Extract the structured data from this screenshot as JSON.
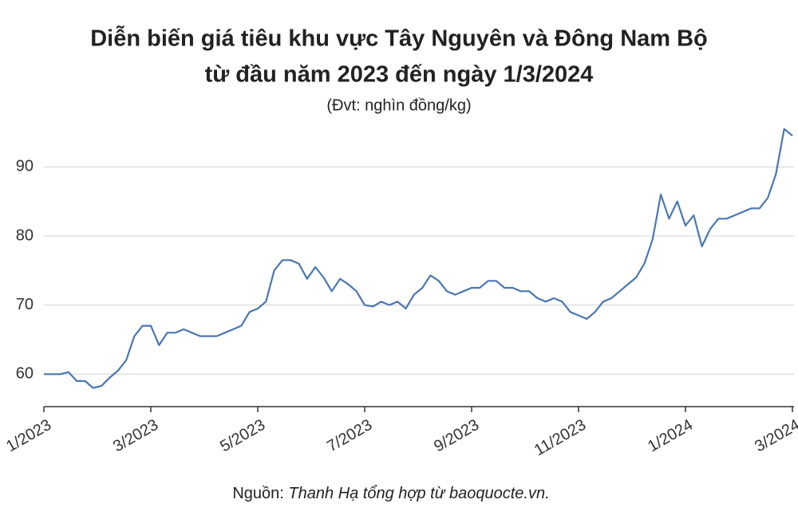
{
  "chart_data": {
    "type": "line",
    "title": [
      "Diễn biến giá tiêu khu vực Tây Nguyên và Đông Nam Bộ",
      "từ đầu năm 2023 đến ngày 1/3/2024"
    ],
    "subtitle": "(Đvt: nghìn đồng/kg)",
    "source": {
      "label": "Nguồn:",
      "text": "Thanh Hạ tổng hợp từ baoquocte.vn."
    },
    "categories": [
      "1/2023",
      null,
      null,
      null,
      null,
      null,
      null,
      null,
      null,
      null,
      null,
      null,
      null,
      "3/2023",
      null,
      null,
      null,
      null,
      null,
      null,
      null,
      null,
      null,
      null,
      null,
      null,
      "5/2023",
      null,
      null,
      null,
      null,
      null,
      null,
      null,
      null,
      null,
      null,
      null,
      null,
      "7/2023",
      null,
      null,
      null,
      null,
      null,
      null,
      null,
      null,
      null,
      null,
      null,
      null,
      "9/2023",
      null,
      null,
      null,
      null,
      null,
      null,
      null,
      null,
      null,
      null,
      null,
      null,
      "11/2023",
      null,
      null,
      null,
      null,
      null,
      null,
      null,
      null,
      null,
      null,
      null,
      null,
      "1/2024",
      null,
      null,
      null,
      null,
      null,
      null,
      null,
      null,
      null,
      null,
      null,
      null,
      "3/2024"
    ],
    "values": [
      60,
      60,
      60,
      60.3,
      59,
      59,
      58,
      58.3,
      59.5,
      60.5,
      62,
      65.5,
      67,
      67,
      64.2,
      66,
      66,
      66.5,
      66,
      65.5,
      65.5,
      65.5,
      66,
      66.5,
      67,
      69,
      69.5,
      70.5,
      75,
      76.5,
      76.5,
      76,
      73.8,
      75.5,
      74,
      72,
      73.8,
      73,
      72,
      70,
      69.8,
      70.5,
      70,
      70.5,
      69.5,
      71.5,
      72.5,
      74.3,
      73.5,
      72,
      71.5,
      72,
      72.5,
      72.5,
      73.5,
      73.5,
      72.5,
      72.5,
      72,
      72,
      71,
      70.5,
      71,
      70.5,
      69,
      68.5,
      68,
      69,
      70.5,
      71,
      72,
      73,
      74,
      76,
      79.5,
      86,
      82.5,
      85,
      81.5,
      83,
      78.5,
      81,
      82.5,
      82.5,
      83,
      83.5,
      84,
      84,
      85.5,
      89,
      95.5,
      94.5
    ],
    "color": "#4a77b4",
    "ylim": [
      55.3,
      96.5
    ],
    "yticks": [
      60,
      70,
      80,
      90
    ],
    "grid": true
  }
}
